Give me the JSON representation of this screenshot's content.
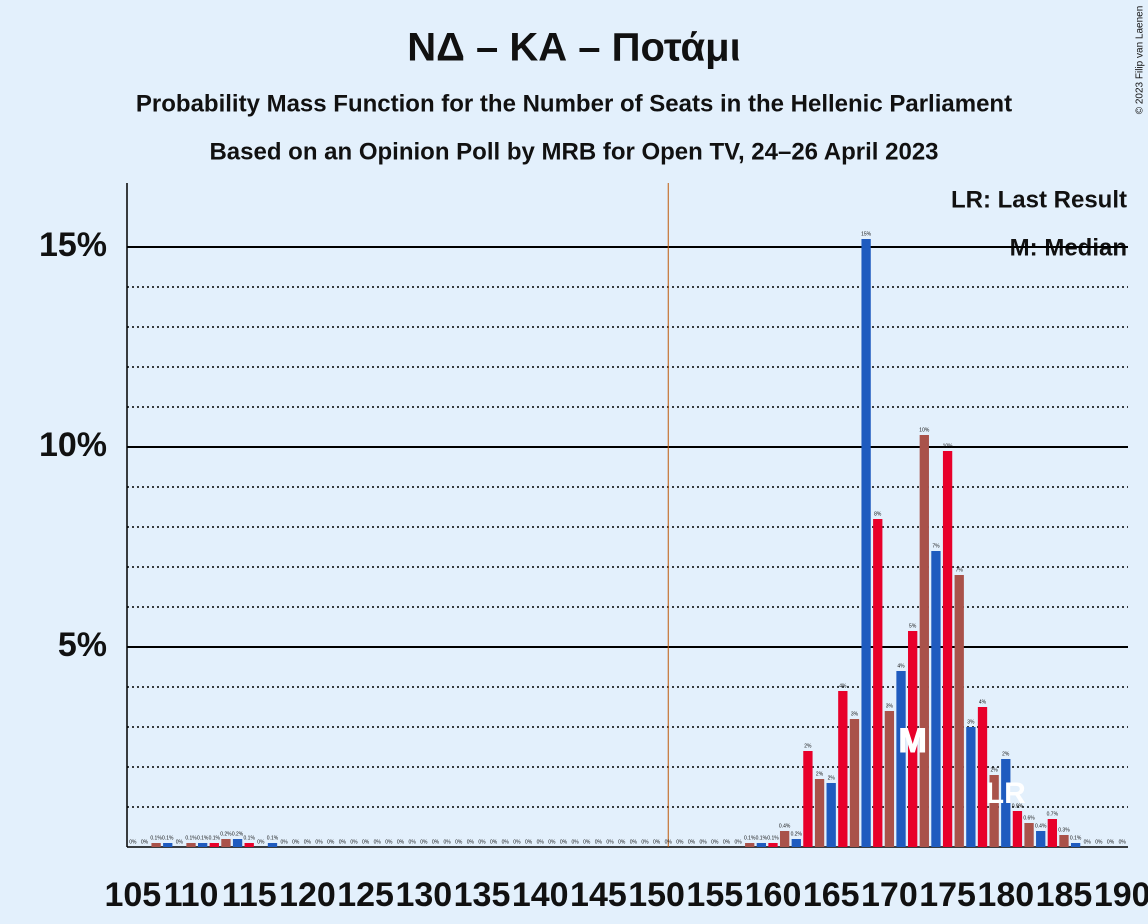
{
  "chart_data": {
    "type": "bar",
    "title": "ΝΔ – ΚΑ – Ποτάμι",
    "subtitle": "Probability Mass Function for the Number of Seats in the Hellenic Parliament",
    "subtitle2": "Based on an Opinion Poll by MRB for Open TV, 24–26 April 2023",
    "copyright": "© 2023 Filip van Laenen",
    "legend": [
      "LR: Last Result",
      "M: Median"
    ],
    "legend_position": "upper right",
    "colors": [
      "#1f5bbf",
      "#e8002a",
      "#a9524a"
    ],
    "last_result": 151,
    "last_result_label": "LR",
    "last_result_color": "#c05a0a",
    "median": 172,
    "median_label": "M",
    "x": [
      105,
      106,
      107,
      108,
      109,
      110,
      111,
      112,
      113,
      114,
      115,
      116,
      117,
      118,
      119,
      120,
      121,
      122,
      123,
      124,
      125,
      126,
      127,
      128,
      129,
      130,
      131,
      132,
      133,
      134,
      135,
      136,
      137,
      138,
      139,
      140,
      141,
      142,
      143,
      144,
      145,
      146,
      147,
      148,
      149,
      150,
      151,
      152,
      153,
      154,
      155,
      156,
      157,
      158,
      159,
      160,
      161,
      162,
      163,
      164,
      165,
      166,
      167,
      168,
      169,
      170,
      171,
      172,
      173,
      174,
      175,
      176,
      177,
      178,
      179,
      180,
      181,
      182,
      183,
      184,
      185,
      186,
      187,
      188,
      189,
      190
    ],
    "values": [
      0,
      0,
      0.1,
      0.1,
      0,
      0.1,
      0.1,
      0.1,
      0.2,
      0.2,
      0.1,
      0,
      0.1,
      0,
      0,
      0,
      0,
      0,
      0,
      0,
      0,
      0,
      0,
      0,
      0,
      0,
      0,
      0,
      0,
      0,
      0,
      0,
      0,
      0,
      0,
      0,
      0,
      0,
      0,
      0,
      0,
      0,
      0,
      0,
      0,
      0,
      0,
      0,
      0,
      0,
      0,
      0,
      0,
      0.1,
      0.1,
      0.1,
      0.4,
      0.2,
      2.4,
      1.7,
      1.6,
      3.9,
      3.2,
      15.2,
      8.2,
      3.4,
      4.4,
      5.4,
      10.3,
      7.4,
      9.9,
      6.8,
      3.0,
      3.5,
      1.8,
      2.2,
      0.9,
      0.6,
      0.4,
      0.7,
      0.3,
      0.1,
      0,
      0,
      0,
      0
    ],
    "value_labels": [
      "0%",
      "0%",
      "0.1%",
      "0.1%",
      "0%",
      "0.1%",
      "0.1%",
      "0.1%",
      "0.2%",
      "0.2%",
      "0.1%",
      "0%",
      "0.1%",
      "0%",
      "0%",
      "0%",
      "0%",
      "0%",
      "0%",
      "0%",
      "0%",
      "0%",
      "0%",
      "0%",
      "0%",
      "0%",
      "0%",
      "0%",
      "0%",
      "0%",
      "0%",
      "0%",
      "0%",
      "0%",
      "0%",
      "0%",
      "0%",
      "0%",
      "0%",
      "0%",
      "0%",
      "0%",
      "0%",
      "0%",
      "0%",
      "0%",
      "0%",
      "0%",
      "0%",
      "0%",
      "0%",
      "0%",
      "0%",
      "0.1%",
      "0.1%",
      "0.1%",
      "0.4%",
      "0.2%",
      "2%",
      "2%",
      "2%",
      "4%",
      "3%",
      "15%",
      "8%",
      "3%",
      "4%",
      "5%",
      "10%",
      "7%",
      "10%",
      "7%",
      "3%",
      "4%",
      "2%",
      "2%",
      "0.9%",
      "0.6%",
      "0.4%",
      "0.7%",
      "0.3%",
      "0.1%",
      "0%",
      "0%",
      "0%",
      "0%"
    ],
    "xlim": [
      104.5,
      190.5
    ],
    "xticks": [
      105,
      110,
      115,
      120,
      125,
      130,
      135,
      140,
      145,
      150,
      155,
      160,
      165,
      170,
      175,
      180,
      185,
      190
    ],
    "ylim": [
      0,
      16.6
    ],
    "yticks": [
      {
        "value": 5,
        "label": "5%"
      },
      {
        "value": 10,
        "label": "10%"
      },
      {
        "value": 15,
        "label": "15%"
      }
    ],
    "minor_yticks": [
      1,
      2,
      3,
      4,
      6,
      7,
      8,
      9,
      11,
      12,
      13,
      14
    ],
    "grid": true
  }
}
